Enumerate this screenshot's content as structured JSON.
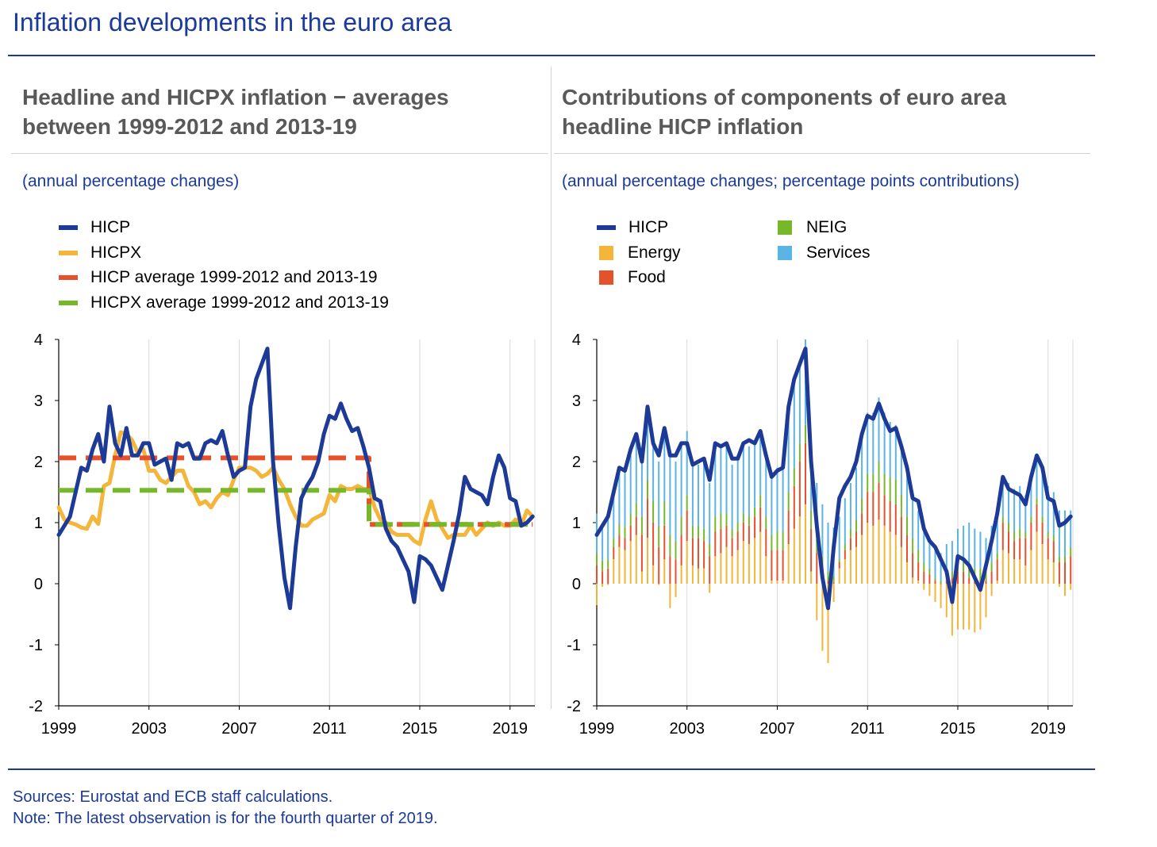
{
  "page": {
    "title": "Inflation developments in the euro area",
    "footnote_sources": "Sources: Eurostat and ECB staff calculations.",
    "footnote_note": "Note: The latest observation is for the fourth quarter of 2019."
  },
  "left_panel": {
    "title_line1": "Headline and HICPX inflation − averages",
    "title_line2": "between 1999-2012 and 2013-19",
    "subtitle": "(annual percentage changes)",
    "legend": [
      {
        "label": "HICP",
        "color": "#1d3b96"
      },
      {
        "label": "HICPX",
        "color": "#f3b53a"
      },
      {
        "label": "HICP average 1999-2012 and 2013-19",
        "color": "#e5512b"
      },
      {
        "label": "HICPX average 1999-2012 and 2013-19",
        "color": "#76b82a"
      }
    ]
  },
  "right_panel": {
    "title_line1": "Contributions of components of euro area",
    "title_line2": "headline HICP inflation",
    "subtitle": "(annual percentage changes; percentage points contributions)",
    "legend": [
      {
        "label": "HICP",
        "color": "#1d3b96",
        "kind": "line"
      },
      {
        "label": "Energy",
        "color": "#f3b53a",
        "kind": "box"
      },
      {
        "label": "Food",
        "color": "#e5512b",
        "kind": "box"
      },
      {
        "label": "NEIG",
        "color": "#76b82a",
        "kind": "box"
      },
      {
        "label": "Services",
        "color": "#5ab4e5",
        "kind": "box"
      }
    ]
  },
  "chart_data": [
    {
      "type": "line",
      "yticks": [
        4,
        3,
        2,
        1,
        0,
        -1,
        -2
      ],
      "xticks": [
        1999,
        2003,
        2007,
        2011,
        2015,
        2019
      ],
      "ylim": [
        -2,
        4
      ],
      "xlim": [
        1999.0,
        2020.1
      ],
      "grid": "vertical",
      "legend_position": "top-left",
      "series": [
        {
          "name": "HICP",
          "color": "#1d3b96",
          "width": 5,
          "x": [
            1999.0,
            1999.25,
            1999.5,
            1999.75,
            2000.0,
            2000.25,
            2000.5,
            2000.75,
            2001.0,
            2001.25,
            2001.5,
            2001.75,
            2002.0,
            2002.25,
            2002.5,
            2002.75,
            2003.0,
            2003.25,
            2003.5,
            2003.75,
            2004.0,
            2004.25,
            2004.5,
            2004.75,
            2005.0,
            2005.25,
            2005.5,
            2005.75,
            2006.0,
            2006.25,
            2006.5,
            2006.75,
            2007.0,
            2007.25,
            2007.5,
            2007.75,
            2008.0,
            2008.25,
            2008.5,
            2008.75,
            2009.0,
            2009.25,
            2009.5,
            2009.75,
            2010.0,
            2010.25,
            2010.5,
            2010.75,
            2011.0,
            2011.25,
            2011.5,
            2011.75,
            2012.0,
            2012.25,
            2012.5,
            2012.75,
            2013.0,
            2013.25,
            2013.5,
            2013.75,
            2014.0,
            2014.25,
            2014.5,
            2014.75,
            2015.0,
            2015.25,
            2015.5,
            2015.75,
            2016.0,
            2016.25,
            2016.5,
            2016.75,
            2017.0,
            2017.25,
            2017.5,
            2017.75,
            2018.0,
            2018.25,
            2018.5,
            2018.75,
            2019.0,
            2019.25,
            2019.5,
            2019.75,
            2020.0
          ],
          "y": [
            0.8,
            0.95,
            1.1,
            1.5,
            1.9,
            1.85,
            2.2,
            2.45,
            2.0,
            2.9,
            2.3,
            2.1,
            2.55,
            2.1,
            2.1,
            2.3,
            2.3,
            1.95,
            2.0,
            2.05,
            1.7,
            2.3,
            2.25,
            2.3,
            2.05,
            2.05,
            2.3,
            2.35,
            2.3,
            2.5,
            2.1,
            1.75,
            1.85,
            1.9,
            2.9,
            3.35,
            3.6,
            3.85,
            2.0,
            0.95,
            0.1,
            -0.4,
            0.6,
            1.4,
            1.6,
            1.75,
            2.0,
            2.45,
            2.75,
            2.7,
            2.95,
            2.7,
            2.5,
            2.55,
            2.25,
            1.9,
            1.4,
            1.35,
            0.9,
            0.7,
            0.6,
            0.4,
            0.2,
            -0.3,
            0.45,
            0.4,
            0.3,
            0.1,
            -0.1,
            0.3,
            0.7,
            1.15,
            1.75,
            1.55,
            1.5,
            1.45,
            1.3,
            1.75,
            2.1,
            1.9,
            1.4,
            1.35,
            0.95,
            1.0,
            1.1
          ]
        },
        {
          "name": "HICPX",
          "color": "#f3b53a",
          "width": 5,
          "x": [
            1999.0,
            1999.25,
            1999.5,
            1999.75,
            2000.0,
            2000.25,
            2000.5,
            2000.75,
            2001.0,
            2001.25,
            2001.5,
            2001.75,
            2002.0,
            2002.25,
            2002.5,
            2002.75,
            2003.0,
            2003.25,
            2003.5,
            2003.75,
            2004.0,
            2004.25,
            2004.5,
            2004.75,
            2005.0,
            2005.25,
            2005.5,
            2005.75,
            2006.0,
            2006.25,
            2006.5,
            2006.75,
            2007.0,
            2007.25,
            2007.5,
            2007.75,
            2008.0,
            2008.25,
            2008.5,
            2008.75,
            2009.0,
            2009.25,
            2009.5,
            2009.75,
            2010.0,
            2010.25,
            2010.5,
            2010.75,
            2011.0,
            2011.25,
            2011.5,
            2011.75,
            2012.0,
            2012.25,
            2012.5,
            2012.75,
            2013.0,
            2013.25,
            2013.5,
            2013.75,
            2014.0,
            2014.25,
            2014.5,
            2014.75,
            2015.0,
            2015.25,
            2015.5,
            2015.75,
            2016.0,
            2016.25,
            2016.5,
            2016.75,
            2017.0,
            2017.25,
            2017.5,
            2017.75,
            2018.0,
            2018.25,
            2018.5,
            2018.75,
            2019.0,
            2019.25,
            2019.5,
            2019.75,
            2020.0
          ],
          "y": [
            1.25,
            1.05,
            1.0,
            0.97,
            0.92,
            0.9,
            1.1,
            0.98,
            1.6,
            1.65,
            2.1,
            2.48,
            2.45,
            2.35,
            2.15,
            2.2,
            1.85,
            1.85,
            1.7,
            1.65,
            1.75,
            1.85,
            1.85,
            1.6,
            1.5,
            1.3,
            1.35,
            1.25,
            1.4,
            1.5,
            1.45,
            1.7,
            1.9,
            1.9,
            1.9,
            1.85,
            1.75,
            1.8,
            1.9,
            1.7,
            1.55,
            1.3,
            1.1,
            0.95,
            0.95,
            1.05,
            1.1,
            1.15,
            1.45,
            1.35,
            1.6,
            1.55,
            1.55,
            1.6,
            1.55,
            1.55,
            1.25,
            1.05,
            1.0,
            0.85,
            0.8,
            0.8,
            0.8,
            0.7,
            0.65,
            1.05,
            1.35,
            1.05,
            0.9,
            0.75,
            0.8,
            0.8,
            0.8,
            0.95,
            0.8,
            0.9,
            1.0,
            0.95,
            1.0,
            0.95,
            0.95,
            1.05,
            0.95,
            1.2,
            1.1
          ]
        },
        {
          "name": "HICP average 1999-2012 and 2013-19",
          "color": "#e5512b",
          "width": 6,
          "dashed": true,
          "x": [
            1999.0,
            2012.75,
            2012.75,
            2020.0
          ],
          "y": [
            2.06,
            2.06,
            0.97,
            0.97
          ]
        },
        {
          "name": "HICPX average 1999-2012 and 2013-19",
          "color": "#76b82a",
          "width": 6,
          "dashed": true,
          "x": [
            1999.0,
            2012.75,
            2012.75,
            2020.0
          ],
          "y": [
            1.53,
            1.53,
            0.97,
            0.97
          ]
        }
      ]
    },
    {
      "type": "bar",
      "stacked": true,
      "yticks": [
        4,
        3,
        2,
        1,
        0,
        -1,
        -2
      ],
      "xticks": [
        1999,
        2003,
        2007,
        2011,
        2015,
        2019
      ],
      "ylim": [
        -2,
        4
      ],
      "xlim": [
        1999.0,
        2020.1
      ],
      "grid": "vertical",
      "legend_position": "top-left",
      "x": [
        1999.0,
        1999.25,
        1999.5,
        1999.75,
        2000.0,
        2000.25,
        2000.5,
        2000.75,
        2001.0,
        2001.25,
        2001.5,
        2001.75,
        2002.0,
        2002.25,
        2002.5,
        2002.75,
        2003.0,
        2003.25,
        2003.5,
        2003.75,
        2004.0,
        2004.25,
        2004.5,
        2004.75,
        2005.0,
        2005.25,
        2005.5,
        2005.75,
        2006.0,
        2006.25,
        2006.5,
        2006.75,
        2007.0,
        2007.25,
        2007.5,
        2007.75,
        2008.0,
        2008.25,
        2008.5,
        2008.75,
        2009.0,
        2009.25,
        2009.5,
        2009.75,
        2010.0,
        2010.25,
        2010.5,
        2010.75,
        2011.0,
        2011.25,
        2011.5,
        2011.75,
        2012.0,
        2012.25,
        2012.5,
        2012.75,
        2013.0,
        2013.25,
        2013.5,
        2013.75,
        2014.0,
        2014.25,
        2014.5,
        2014.75,
        2015.0,
        2015.25,
        2015.5,
        2015.75,
        2016.0,
        2016.25,
        2016.5,
        2016.75,
        2017.0,
        2017.25,
        2017.5,
        2017.75,
        2018.0,
        2018.25,
        2018.5,
        2018.75,
        2019.0,
        2019.25,
        2019.5,
        2019.75,
        2020.0
      ],
      "series": [
        {
          "name": "Energy",
          "color": "#f3b53a",
          "values": [
            -0.35,
            -0.05,
            -0.02,
            0.4,
            0.6,
            0.55,
            0.7,
            0.8,
            0.2,
            0.75,
            0.3,
            -0.02,
            0.4,
            -0.4,
            -0.22,
            0.3,
            0.7,
            0.3,
            0.25,
            0.25,
            -0.15,
            0.45,
            0.5,
            0.6,
            0.45,
            0.55,
            0.7,
            0.65,
            0.75,
            0.85,
            0.45,
            0.05,
            0.05,
            0.05,
            0.65,
            0.9,
            1.1,
            1.3,
            0.2,
            -0.6,
            -1.1,
            -1.3,
            -0.3,
            0.25,
            0.4,
            0.55,
            0.6,
            0.8,
            1.0,
            0.95,
            1.05,
            0.95,
            0.85,
            0.8,
            0.6,
            0.35,
            0.1,
            0.05,
            -0.1,
            -0.2,
            -0.3,
            -0.4,
            -0.55,
            -0.85,
            -0.75,
            -0.75,
            -0.75,
            -0.8,
            -0.75,
            -0.55,
            -0.2,
            0.05,
            0.55,
            0.5,
            0.4,
            0.4,
            0.3,
            0.55,
            0.85,
            0.65,
            0.4,
            0.35,
            -0.05,
            -0.2,
            -0.1
          ]
        },
        {
          "name": "Food",
          "color": "#e5512b",
          "values": [
            0.3,
            0.2,
            0.25,
            0.2,
            0.2,
            0.2,
            0.25,
            0.3,
            0.6,
            0.65,
            0.7,
            0.6,
            0.55,
            0.45,
            0.4,
            0.5,
            0.5,
            0.45,
            0.5,
            0.45,
            0.45,
            0.4,
            0.4,
            0.35,
            0.3,
            0.3,
            0.3,
            0.3,
            0.35,
            0.4,
            0.45,
            0.5,
            0.5,
            0.5,
            0.55,
            0.7,
            0.9,
            1.0,
            0.7,
            0.5,
            0.25,
            0.05,
            0.02,
            0.1,
            0.15,
            0.2,
            0.25,
            0.35,
            0.5,
            0.55,
            0.6,
            0.5,
            0.5,
            0.5,
            0.5,
            0.45,
            0.4,
            0.3,
            0.2,
            0.15,
            0.05,
            0.0,
            0.05,
            0.1,
            0.2,
            0.2,
            0.1,
            0.05,
            0.05,
            0.05,
            0.2,
            0.35,
            0.45,
            0.35,
            0.3,
            0.35,
            0.45,
            0.45,
            0.45,
            0.35,
            0.35,
            0.35,
            0.35,
            0.35,
            0.45
          ]
        },
        {
          "name": "NEIG",
          "color": "#76b82a",
          "values": [
            0.2,
            0.18,
            0.15,
            0.15,
            0.18,
            0.18,
            0.2,
            0.22,
            0.3,
            0.3,
            0.35,
            0.35,
            0.4,
            0.35,
            0.3,
            0.3,
            0.25,
            0.2,
            0.2,
            0.2,
            0.2,
            0.25,
            0.25,
            0.2,
            0.15,
            0.15,
            0.15,
            0.15,
            0.15,
            0.2,
            0.2,
            0.25,
            0.3,
            0.3,
            0.3,
            0.3,
            0.3,
            0.3,
            0.3,
            0.25,
            0.2,
            0.15,
            0.1,
            0.05,
            0.1,
            0.15,
            0.2,
            0.25,
            0.3,
            0.3,
            0.35,
            0.35,
            0.4,
            0.4,
            0.35,
            0.3,
            0.25,
            0.2,
            0.15,
            0.1,
            0.05,
            0.05,
            0.1,
            0.1,
            0.15,
            0.15,
            0.2,
            0.2,
            0.2,
            0.15,
            0.15,
            0.1,
            0.1,
            0.15,
            0.15,
            0.15,
            0.1,
            0.1,
            0.1,
            0.1,
            0.1,
            0.1,
            0.1,
            0.1,
            0.15
          ]
        },
        {
          "name": "Services",
          "color": "#5ab4e5",
          "values": [
            0.65,
            0.6,
            0.7,
            0.75,
            0.9,
            0.9,
            0.95,
            1.0,
            1.0,
            1.05,
            1.0,
            1.05,
            1.2,
            1.35,
            1.3,
            1.2,
            1.05,
            1.05,
            1.0,
            1.1,
            1.0,
            1.15,
            1.1,
            1.1,
            1.05,
            1.05,
            1.1,
            1.15,
            1.05,
            1.05,
            1.0,
            1.0,
            1.05,
            1.05,
            1.25,
            1.4,
            1.35,
            1.4,
            1.0,
            0.9,
            0.85,
            0.8,
            0.8,
            0.7,
            0.75,
            0.75,
            0.85,
            0.95,
            1.0,
            1.0,
            1.05,
            1.0,
            0.9,
            0.9,
            0.85,
            0.8,
            0.75,
            0.65,
            0.55,
            0.5,
            0.5,
            0.45,
            0.5,
            0.5,
            0.55,
            0.6,
            0.7,
            0.65,
            0.6,
            0.55,
            0.6,
            0.6,
            0.65,
            0.65,
            0.7,
            0.7,
            0.6,
            0.65,
            0.7,
            0.75,
            0.75,
            0.7,
            0.75,
            0.75,
            0.6
          ]
        },
        {
          "name": "HICP",
          "color": "#1d3b96",
          "kind": "line",
          "values": [
            0.8,
            0.95,
            1.1,
            1.5,
            1.9,
            1.85,
            2.2,
            2.45,
            2.0,
            2.9,
            2.3,
            2.1,
            2.55,
            2.1,
            2.1,
            2.3,
            2.3,
            1.95,
            2.0,
            2.05,
            1.7,
            2.3,
            2.25,
            2.3,
            2.05,
            2.05,
            2.3,
            2.35,
            2.3,
            2.5,
            2.1,
            1.75,
            1.85,
            1.9,
            2.9,
            3.35,
            3.6,
            3.85,
            2.0,
            0.95,
            0.1,
            -0.4,
            0.6,
            1.4,
            1.6,
            1.75,
            2.0,
            2.45,
            2.75,
            2.7,
            2.95,
            2.7,
            2.5,
            2.55,
            2.25,
            1.9,
            1.4,
            1.35,
            0.9,
            0.7,
            0.6,
            0.4,
            0.2,
            -0.3,
            0.45,
            0.4,
            0.3,
            0.1,
            -0.1,
            0.3,
            0.7,
            1.15,
            1.75,
            1.55,
            1.5,
            1.45,
            1.3,
            1.75,
            2.1,
            1.9,
            1.4,
            1.35,
            0.95,
            1.0,
            1.1
          ]
        }
      ]
    }
  ]
}
